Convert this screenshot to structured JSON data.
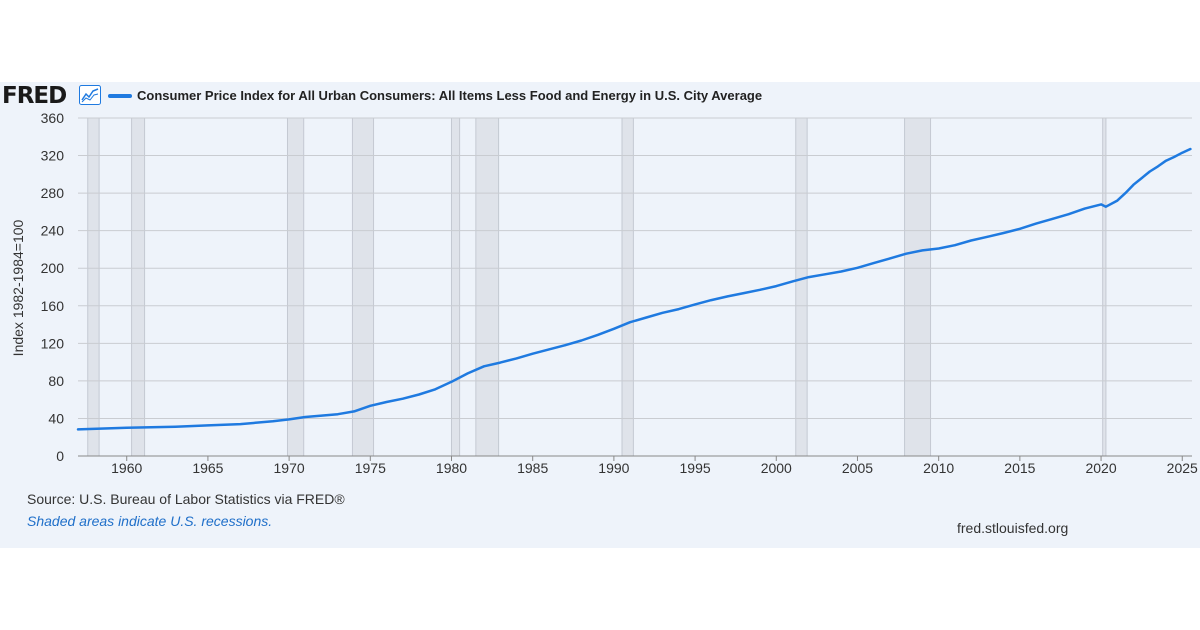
{
  "header": {
    "logo_text": "FRED",
    "logo_icon": "line-chart-icon"
  },
  "colors": {
    "series": "#1f7ae0",
    "recession": "#dfe3ea",
    "grid": "#c9ccd1",
    "panel": "#eef3fa"
  },
  "footer": {
    "source": "Source: U.S. Bureau of Labor Statistics via FRED®",
    "recession_note": "Shaded areas indicate U.S. recessions.",
    "site": "fred.stlouisfed.org"
  },
  "chart_data": {
    "type": "line",
    "title": "Consumer Price Index for All Urban Consumers: All Items Less Food and Energy in U.S. City Average",
    "ylabel": "Index 1982-1984=100",
    "xlabel": "",
    "xlim": [
      1957,
      2025.6
    ],
    "ylim": [
      0,
      360
    ],
    "yticks": [
      0,
      40,
      80,
      120,
      160,
      200,
      240,
      280,
      320,
      360
    ],
    "xticks": [
      1960,
      1965,
      1970,
      1975,
      1980,
      1985,
      1990,
      1995,
      2000,
      2005,
      2010,
      2015,
      2020,
      2025
    ],
    "grid": true,
    "legend_position": "top",
    "recessions": [
      [
        1957.6,
        1958.3
      ],
      [
        1960.3,
        1961.1
      ],
      [
        1969.9,
        1970.9
      ],
      [
        1973.9,
        1975.2
      ],
      [
        1980.0,
        1980.5
      ],
      [
        1981.5,
        1982.9
      ],
      [
        1990.5,
        1991.2
      ],
      [
        2001.2,
        2001.9
      ],
      [
        2007.9,
        2009.5
      ],
      [
        2020.1,
        2020.3
      ]
    ],
    "series": [
      {
        "name": "Consumer Price Index for All Urban Consumers: All Items Less Food and Energy in U.S. City Average",
        "x": [
          1957,
          1960,
          1963,
          1965,
          1967,
          1969,
          1970,
          1971,
          1972,
          1973,
          1974,
          1975,
          1976,
          1977,
          1978,
          1979,
          1980,
          1981,
          1982,
          1983,
          1984,
          1985,
          1986,
          1987,
          1988,
          1989,
          1990,
          1991,
          1992,
          1993,
          1994,
          1995,
          1996,
          1997,
          1998,
          1999,
          2000,
          2001,
          2002,
          2003,
          2004,
          2005,
          2006,
          2007,
          2008,
          2009,
          2010,
          2011,
          2012,
          2013,
          2014,
          2015,
          2016,
          2017,
          2018,
          2019,
          2020,
          2020.3,
          2021,
          2021.5,
          2022,
          2022.5,
          2023,
          2023.5,
          2024,
          2024.5,
          2025,
          2025.5
        ],
        "values": [
          28.3,
          30.0,
          31.2,
          32.6,
          34.0,
          37.0,
          39.0,
          41.5,
          43.0,
          44.5,
          47.5,
          53.5,
          57.5,
          61.0,
          65.5,
          71.0,
          79.0,
          88.0,
          95.5,
          99.5,
          104.0,
          109.0,
          113.5,
          118.0,
          123.0,
          129.0,
          135.5,
          142.5,
          147.5,
          152.5,
          156.5,
          161.5,
          166.0,
          170.0,
          173.5,
          177.0,
          181.0,
          186.0,
          190.5,
          193.5,
          196.5,
          200.5,
          205.5,
          210.5,
          215.5,
          219.0,
          221.0,
          224.5,
          229.5,
          233.5,
          237.5,
          242.0,
          247.5,
          252.5,
          257.5,
          263.5,
          268.0,
          265.5,
          272.0,
          280.0,
          289.0,
          296.0,
          303.0,
          308.5,
          314.5,
          318.5,
          323.0,
          327.0
        ]
      }
    ]
  }
}
